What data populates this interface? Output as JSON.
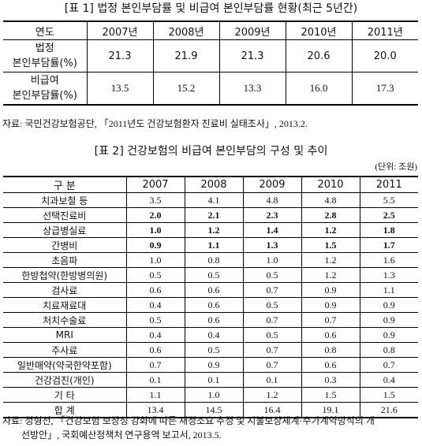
{
  "table1": {
    "title": "[표 1] 법정 본인부담률 및 비급여 본인부담률 현황(최근 5년간)",
    "header": [
      "연도",
      "2007년",
      "2008년",
      "2009년",
      "2010년",
      "2011년"
    ],
    "rows": [
      {
        "label_line1": "법정",
        "label_line2": "본인부담률(%)",
        "values": [
          "21.3",
          "21.9",
          "21.3",
          "20.6",
          "20.0"
        ]
      },
      {
        "label_line1": "비급여",
        "label_line2": "본인부담률(%)",
        "values": [
          "13.5",
          "15.2",
          "13.3",
          "16.0",
          "17.3"
        ]
      }
    ],
    "source": "자료: 국민건강보험공단, 「2011년도 건강보험환자 진료비 실태조사」, 2013.2."
  },
  "table2": {
    "title": "[표 2] 건강보험의 비급여 본인부담의 구성 및 추이",
    "unit": "(단위: 조원)",
    "header": [
      "구 분",
      "2007",
      "2008",
      "2009",
      "2010",
      "2011"
    ],
    "rows": [
      {
        "item": "치과보철 등",
        "values": [
          "3.5",
          "4.1",
          "4.8",
          "4.8",
          "5.5"
        ],
        "bold": false
      },
      {
        "item": "선택진료비",
        "values": [
          "2.0",
          "2.1",
          "2.3",
          "2.8",
          "2.5"
        ],
        "bold": true
      },
      {
        "item": "상급병실료",
        "values": [
          "1.0",
          "1.2",
          "1.4",
          "1.2",
          "1.8"
        ],
        "bold": true
      },
      {
        "item": "간병비",
        "values": [
          "0.9",
          "1.1",
          "1.3",
          "1.5",
          "1.7"
        ],
        "bold": true
      },
      {
        "item": "초음파",
        "values": [
          "1.0",
          "0.8",
          "1.0",
          "1.2",
          "1.6"
        ],
        "bold": false
      },
      {
        "item": "한방첩약(한방병의원)",
        "values": [
          "0.5",
          "0.5",
          "0.5",
          "1.2",
          "1.3"
        ],
        "bold": false
      },
      {
        "item": "검사료",
        "values": [
          "0.6",
          "0.6",
          "0.7",
          "0.9",
          "1.1"
        ],
        "bold": false
      },
      {
        "item": "치료재료대",
        "values": [
          "0.4",
          "0.6",
          "0.5",
          "0.9",
          "0.9"
        ],
        "bold": false
      },
      {
        "item": "처치수술료",
        "values": [
          "0.5",
          "0.6",
          "0.7",
          "0.7",
          "0.9"
        ],
        "bold": false
      },
      {
        "item": "MRI",
        "values": [
          "0.4",
          "0.4",
          "0.5",
          "0.6",
          "0.9"
        ],
        "bold": false
      },
      {
        "item": "주사료",
        "values": [
          "0.6",
          "0.5",
          "0.7",
          "0.8",
          "0.8"
        ],
        "bold": false
      },
      {
        "item": "일반매약(약국한약포함)",
        "values": [
          "0.7",
          "0.9",
          "0.7",
          "0.6",
          "0.7"
        ],
        "bold": false
      },
      {
        "item": "건강검진(개인)",
        "values": [
          "0.1",
          "0.1",
          "0.1",
          "0.3",
          "0.4"
        ],
        "bold": false
      },
      {
        "item": "기 타",
        "values": [
          "1.1",
          "1.0",
          "1.2",
          "1.5",
          "1.5"
        ],
        "bold": false
      },
      {
        "item": "합 계",
        "values": [
          "13.4",
          "14.5",
          "16.4",
          "19.1",
          "21.6"
        ],
        "bold": false
      }
    ],
    "source_line1": "자료: 정형선, 「건강보험 보장성 강화에 따른 재정소요 추정 및 지불보상체계·수가계약방식의 개",
    "source_line2": "선방안」, 국회예산정책처 연구용역 보고서, 2013.5."
  }
}
